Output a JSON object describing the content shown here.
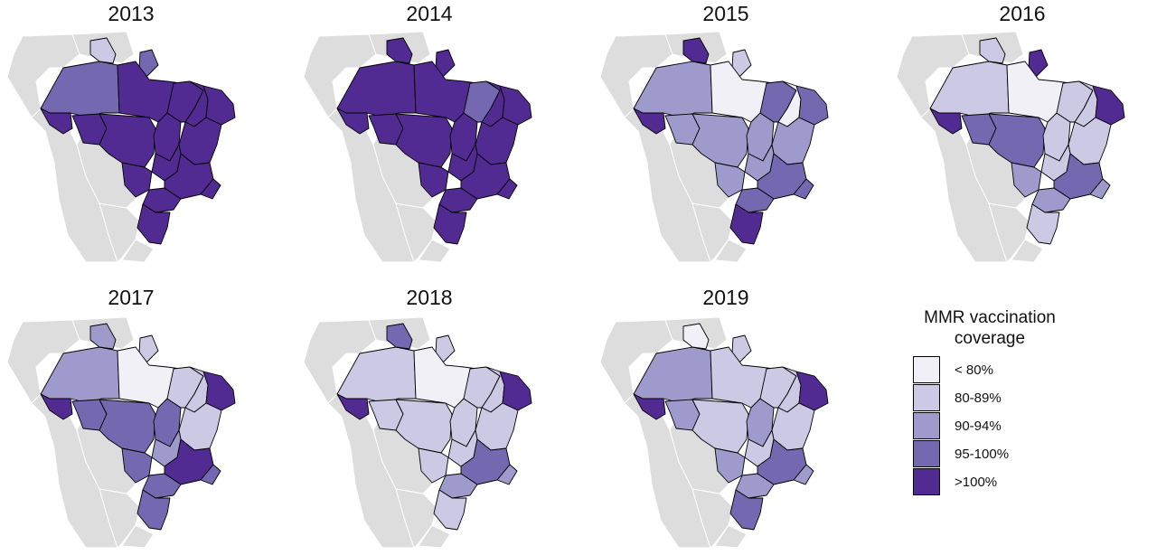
{
  "maps": [
    {
      "year": "2013",
      "coverage": {
        "AM": 3,
        "RR": 1,
        "AP": 3,
        "PA": 4,
        "AC": 4,
        "RO": 4,
        "MT": 4,
        "TO": 4,
        "MA": 4,
        "PI": 4,
        "NE": 4,
        "BA": 4,
        "GO": 4,
        "MS": 4,
        "MG": 4,
        "SE": 4,
        "S": 4,
        "SP": 4
      }
    },
    {
      "year": "2014",
      "coverage": {
        "AM": 4,
        "RR": 4,
        "AP": 4,
        "PA": 4,
        "AC": 4,
        "RO": 4,
        "MT": 4,
        "TO": 4,
        "MA": 3,
        "PI": 4,
        "NE": 4,
        "BA": 4,
        "GO": 4,
        "MS": 4,
        "MG": 4,
        "SE": 4,
        "S": 4,
        "SP": 4
      }
    },
    {
      "year": "2015",
      "coverage": {
        "AM": 2,
        "RR": 4,
        "AP": 1,
        "PA": 0,
        "AC": 4,
        "RO": 2,
        "MT": 2,
        "TO": 2,
        "MA": 3,
        "PI": 0,
        "NE": 3,
        "BA": 2,
        "GO": 2,
        "MS": 2,
        "MG": 3,
        "SE": 3,
        "S": 4,
        "SP": 3
      }
    },
    {
      "year": "2016",
      "coverage": {
        "AM": 1,
        "RR": 1,
        "AP": 4,
        "PA": 0,
        "AC": 4,
        "RO": 3,
        "MT": 3,
        "TO": 1,
        "MA": 1,
        "PI": 1,
        "NE": 4,
        "BA": 1,
        "GO": 1,
        "MS": 2,
        "MG": 3,
        "SE": 2,
        "S": 1,
        "SP": 2
      }
    },
    {
      "year": "2017",
      "coverage": {
        "AM": 2,
        "RR": 2,
        "AP": 1,
        "PA": 0,
        "AC": 4,
        "RO": 3,
        "MT": 3,
        "TO": 3,
        "MA": 1,
        "PI": 1,
        "NE": 4,
        "BA": 1,
        "GO": 2,
        "MS": 3,
        "MG": 4,
        "SE": 3,
        "S": 3,
        "SP": 3
      }
    },
    {
      "year": "2018",
      "coverage": {
        "AM": 1,
        "RR": 3,
        "AP": 1,
        "PA": 0,
        "AC": 4,
        "RO": 1,
        "MT": 1,
        "TO": 1,
        "MA": 1,
        "PI": 1,
        "NE": 4,
        "BA": 1,
        "GO": 1,
        "MS": 1,
        "MG": 3,
        "SE": 2,
        "S": 1,
        "SP": 2
      }
    },
    {
      "year": "2019",
      "coverage": {
        "AM": 2,
        "RR": 0,
        "AP": 1,
        "PA": 1,
        "AC": 4,
        "RO": 2,
        "MT": 1,
        "TO": 2,
        "MA": 1,
        "PI": 1,
        "NE": 4,
        "BA": 1,
        "GO": 1,
        "MS": 2,
        "MG": 3,
        "SE": 2,
        "S": 3,
        "SP": 2
      }
    }
  ],
  "legend": {
    "title_line1": "MMR vaccination",
    "title_line2": "coverage",
    "items": [
      {
        "label": "< 80%",
        "color": "#f1f0f6"
      },
      {
        "label": "80-89%",
        "color": "#cbc9e3"
      },
      {
        "label": "90-94%",
        "color": "#9e9acb"
      },
      {
        "label": "95-100%",
        "color": "#7469b0"
      },
      {
        "label": ">100%",
        "color": "#522b92"
      }
    ]
  },
  "neighbor_color": "#dddddd"
}
